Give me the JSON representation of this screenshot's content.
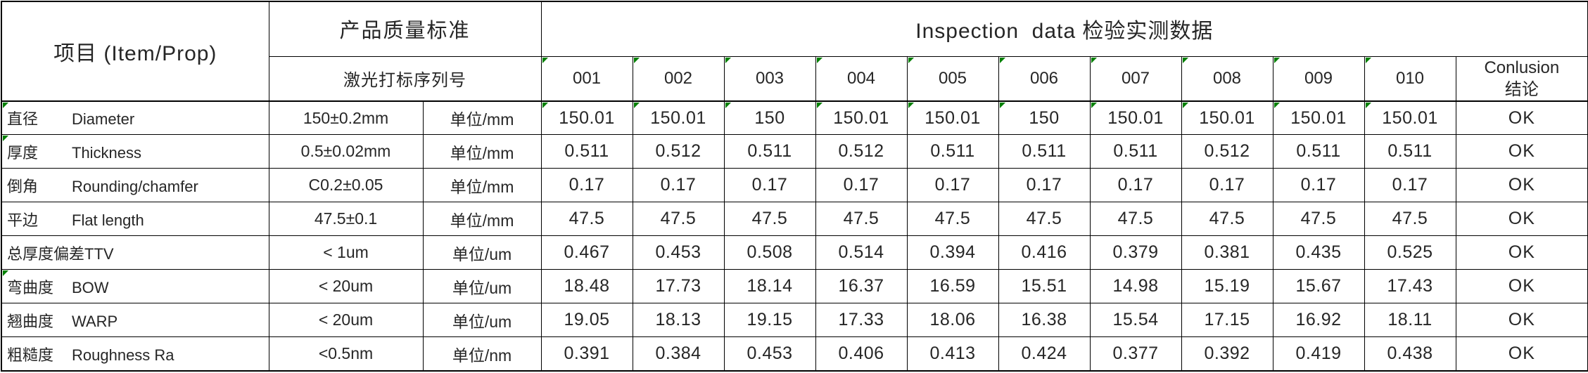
{
  "accent": {
    "flag_color": "#008000"
  },
  "header": {
    "item": "项目 (Item/Prop)",
    "standard": "产品质量标准",
    "inspection": "Inspection  data 检验实测数据",
    "serial_label": "激光打标序列号",
    "serials": [
      "001",
      "002",
      "003",
      "004",
      "005",
      "006",
      "007",
      "008",
      "009",
      "010"
    ],
    "conclusion_en": "Conlusion",
    "conclusion_cn": "结论"
  },
  "rows": [
    {
      "cn": "直径",
      "en": "Diameter",
      "spec": "150±0.2mm",
      "unit": "单位/mm",
      "values": [
        "150.01",
        "150.01",
        "150",
        "150.01",
        "150.01",
        "150",
        "150.01",
        "150.01",
        "150.01",
        "150.01"
      ],
      "conclusion": "OK",
      "label_flag": true,
      "value_flags": true
    },
    {
      "cn": "厚度",
      "en": "Thickness",
      "spec": "0.5±0.02mm",
      "unit": "单位/mm",
      "values": [
        "0.511",
        "0.512",
        "0.511",
        "0.512",
        "0.511",
        "0.511",
        "0.511",
        "0.512",
        "0.511",
        "0.511"
      ],
      "conclusion": "OK",
      "label_flag": true,
      "value_flags": false
    },
    {
      "cn": "倒角",
      "en": "Rounding/chamfer",
      "spec": "C0.2±0.05",
      "unit": "单位/mm",
      "values": [
        "0.17",
        "0.17",
        "0.17",
        "0.17",
        "0.17",
        "0.17",
        "0.17",
        "0.17",
        "0.17",
        "0.17"
      ],
      "conclusion": "OK",
      "label_flag": false,
      "value_flags": false
    },
    {
      "cn": "平边",
      "en": "Flat length",
      "spec": "47.5±0.1",
      "unit": "单位/mm",
      "values": [
        "47.5",
        "47.5",
        "47.5",
        "47.5",
        "47.5",
        "47.5",
        "47.5",
        "47.5",
        "47.5",
        "47.5"
      ],
      "conclusion": "OK",
      "label_flag": false,
      "value_flags": false
    },
    {
      "cn": "总厚度偏差",
      "en": "TTV",
      "spec": "< 1um",
      "unit": "单位/um",
      "values": [
        "0.467",
        "0.453",
        "0.508",
        "0.514",
        "0.394",
        "0.416",
        "0.379",
        "0.381",
        "0.435",
        "0.525"
      ],
      "conclusion": "OK",
      "label_flag": false,
      "value_flags": false
    },
    {
      "cn": "弯曲度",
      "en": "BOW",
      "spec": "< 20um",
      "unit": "单位/um",
      "values": [
        "18.48",
        "17.73",
        "18.14",
        "16.37",
        "16.59",
        "15.51",
        "14.98",
        "15.19",
        "15.67",
        "17.43"
      ],
      "conclusion": "OK",
      "label_flag": true,
      "value_flags": false
    },
    {
      "cn": "翘曲度",
      "en": "WARP",
      "spec": "< 20um",
      "unit": "单位/um",
      "values": [
        "19.05",
        "18.13",
        "19.15",
        "17.33",
        "18.06",
        "16.38",
        "15.54",
        "17.15",
        "16.92",
        "18.11"
      ],
      "conclusion": "OK",
      "label_flag": false,
      "value_flags": false
    },
    {
      "cn": "粗糙度",
      "en": "Roughness Ra",
      "spec": "<0.5nm",
      "unit": "单位/nm",
      "values": [
        "0.391",
        "0.384",
        "0.453",
        "0.406",
        "0.413",
        "0.424",
        "0.377",
        "0.392",
        "0.419",
        "0.438"
      ],
      "conclusion": "OK",
      "label_flag": false,
      "value_flags": false
    }
  ]
}
